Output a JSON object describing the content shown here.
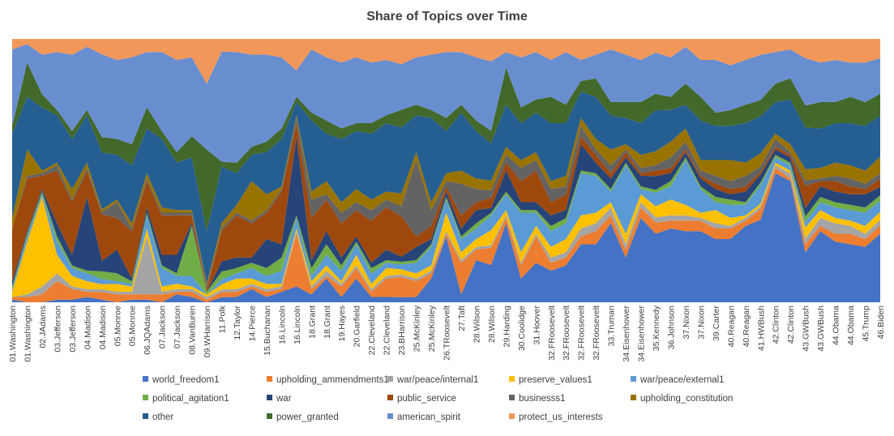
{
  "chart_data": {
    "type": "area",
    "stacked": "percent",
    "title": "Share of Topics over Time",
    "xlabel": "",
    "ylabel": "",
    "ylim": [
      0,
      1
    ],
    "grid": false,
    "legend_position": "bottom",
    "x": [
      "01.Washington",
      "01.Washington",
      "02.JAdams",
      "03.Jefferson",
      "03.Jefferson",
      "04.Madison",
      "04.Madison",
      "05.Monroe",
      "05.Monroe",
      "06.JQAdams",
      "07.Jackson",
      "07.Jackson",
      "08.VanBuren",
      "09.WHarrison",
      "11.Polk",
      "12.Taylor",
      "14.Pierce",
      "15.Buchanan",
      "16.Lincoln",
      "16.Lincoln",
      "18.Grant",
      "18.Grant",
      "19.Hayes",
      "20.Garfield",
      "22.Cleveland",
      "22.Cleveland",
      "23.BHarrison",
      "25.McKinley",
      "25.McKinley",
      "26.TRoosevelt",
      "27.Taft",
      "28.Wilson",
      "28.Wilson",
      "29.Harding",
      "30.Coolidge",
      "31.Hoover",
      "32.FRoosevelt",
      "32.FRoosevelt",
      "32.FRoosevelt",
      "32.FRoosevelt",
      "33.Truman",
      "34.Eisenhower",
      "34.Eisenhower",
      "35.Kennedy",
      "36.Johnson",
      "37.Nixon",
      "37.Nixon",
      "39.Carter",
      "40.Reagan",
      "40.Reagan",
      "41.HWBush",
      "42.Clinton",
      "42.Clinton",
      "43.GWBush",
      "43.GWBush",
      "44.Obama",
      "44.Obama",
      "45.Trump",
      "46.Biden"
    ],
    "series": [
      {
        "name": "world_freedom1",
        "color": "#4472C4",
        "values": [
          0.01,
          0.0,
          0.0,
          0.01,
          0.01,
          0.02,
          0.01,
          0.0,
          0.01,
          0.01,
          0.0,
          0.03,
          0.02,
          0.0,
          0.02,
          0.02,
          0.05,
          0.02,
          0.04,
          0.06,
          0.03,
          0.09,
          0.02,
          0.09,
          0.02,
          0.02,
          0.02,
          0.02,
          0.09,
          0.25,
          0.03,
          0.16,
          0.15,
          0.3,
          0.09,
          0.15,
          0.12,
          0.14,
          0.22,
          0.22,
          0.3,
          0.17,
          0.32,
          0.25,
          0.28,
          0.27,
          0.27,
          0.24,
          0.24,
          0.29,
          0.31,
          0.49,
          0.46,
          0.18,
          0.27,
          0.23,
          0.22,
          0.21,
          0.25
        ]
      },
      {
        "name": "upholding_ammendments1",
        "color": "#ED7D31",
        "values": [
          0.01,
          0.02,
          0.03,
          0.07,
          0.04,
          0.02,
          0.03,
          0.03,
          0.02,
          0.02,
          0.03,
          0.01,
          0.02,
          0.01,
          0.02,
          0.02,
          0.01,
          0.02,
          0.01,
          0.2,
          0.02,
          0.01,
          0.04,
          0.04,
          0.02,
          0.07,
          0.08,
          0.06,
          0.02,
          0.01,
          0.12,
          0.04,
          0.07,
          0.02,
          0.05,
          0.1,
          0.03,
          0.03,
          0.03,
          0.05,
          0.03,
          0.03,
          0.04,
          0.04,
          0.03,
          0.04,
          0.04,
          0.04,
          0.04,
          0.02,
          0.04,
          0.02,
          0.01,
          0.03,
          0.02,
          0.03,
          0.04,
          0.03,
          0.03
        ]
      },
      {
        "name": "war/peace/internal1",
        "color": "#A5A5A5",
        "values": [
          0.0,
          0.01,
          0.03,
          0.03,
          0.01,
          0.01,
          0.01,
          0.01,
          0.01,
          0.22,
          0.01,
          0.01,
          0.01,
          0.01,
          0.01,
          0.01,
          0.01,
          0.01,
          0.01,
          0.01,
          0.01,
          0.02,
          0.01,
          0.01,
          0.01,
          0.01,
          0.01,
          0.01,
          0.01,
          0.01,
          0.01,
          0.01,
          0.01,
          0.01,
          0.01,
          0.01,
          0.02,
          0.02,
          0.03,
          0.03,
          0.03,
          0.02,
          0.02,
          0.02,
          0.02,
          0.02,
          0.01,
          0.02,
          0.01,
          0.01,
          0.01,
          0.01,
          0.02,
          0.02,
          0.03,
          0.04,
          0.03,
          0.02,
          0.02
        ]
      },
      {
        "name": "preserve_values1",
        "color": "#FFC000",
        "values": [
          0.02,
          0.2,
          0.34,
          0.07,
          0.04,
          0.03,
          0.02,
          0.03,
          0.02,
          0.03,
          0.02,
          0.02,
          0.01,
          0.01,
          0.02,
          0.04,
          0.02,
          0.02,
          0.01,
          0.01,
          0.02,
          0.02,
          0.01,
          0.04,
          0.02,
          0.03,
          0.02,
          0.02,
          0.02,
          0.07,
          0.03,
          0.03,
          0.06,
          0.02,
          0.04,
          0.03,
          0.04,
          0.05,
          0.05,
          0.04,
          0.02,
          0.04,
          0.03,
          0.04,
          0.06,
          0.04,
          0.02,
          0.05,
          0.03,
          0.01,
          0.01,
          0.01,
          0.01,
          0.04,
          0.03,
          0.02,
          0.02,
          0.03,
          0.03
        ]
      },
      {
        "name": "war/peace/external1",
        "color": "#5B9BD5",
        "values": [
          0.01,
          0.02,
          0.01,
          0.05,
          0.03,
          0.03,
          0.02,
          0.01,
          0.01,
          0.05,
          0.07,
          0.03,
          0.04,
          0.0,
          0.02,
          0.02,
          0.04,
          0.03,
          0.05,
          0.04,
          0.02,
          0.04,
          0.04,
          0.04,
          0.04,
          0.02,
          0.02,
          0.04,
          0.07,
          0.05,
          0.05,
          0.04,
          0.06,
          0.06,
          0.15,
          0.05,
          0.06,
          0.06,
          0.16,
          0.14,
          0.04,
          0.26,
          0.02,
          0.05,
          0.05,
          0.17,
          0.09,
          0.03,
          0.05,
          0.04,
          0.07,
          0.02,
          0.02,
          0.02,
          0.03,
          0.04,
          0.04,
          0.05,
          0.04
        ]
      },
      {
        "name": "political_agitation1",
        "color": "#70AD47",
        "values": [
          0.01,
          0.01,
          0.01,
          0.02,
          0.01,
          0.01,
          0.03,
          0.03,
          0.01,
          0.01,
          0.01,
          0.01,
          0.19,
          0.01,
          0.03,
          0.02,
          0.02,
          0.03,
          0.05,
          0.01,
          0.03,
          0.04,
          0.02,
          0.01,
          0.02,
          0.01,
          0.01,
          0.01,
          0.01,
          0.01,
          0.01,
          0.02,
          0.01,
          0.01,
          0.01,
          0.01,
          0.02,
          0.02,
          0.01,
          0.01,
          0.01,
          0.01,
          0.01,
          0.01,
          0.02,
          0.01,
          0.01,
          0.02,
          0.02,
          0.01,
          0.01,
          0.01,
          0.01,
          0.02,
          0.02,
          0.02,
          0.02,
          0.02,
          0.02
        ]
      },
      {
        "name": "war",
        "color": "#264478",
        "values": [
          0.02,
          0.01,
          0.01,
          0.05,
          0.04,
          0.28,
          0.04,
          0.09,
          0.01,
          0.02,
          0.04,
          0.07,
          0.01,
          0.0,
          0.04,
          0.04,
          0.02,
          0.11,
          0.05,
          0.3,
          0.03,
          0.05,
          0.03,
          0.02,
          0.02,
          0.04,
          0.02,
          0.05,
          0.02,
          0.02,
          0.03,
          0.05,
          0.02,
          0.08,
          0.03,
          0.03,
          0.04,
          0.03,
          0.1,
          0.04,
          0.04,
          0.02,
          0.04,
          0.05,
          0.03,
          0.02,
          0.03,
          0.03,
          0.02,
          0.04,
          0.03,
          0.02,
          0.02,
          0.03,
          0.04,
          0.04,
          0.04,
          0.05,
          0.03
        ]
      },
      {
        "name": "public_service",
        "color": "#9E480E",
        "values": [
          0.2,
          0.2,
          0.05,
          0.2,
          0.2,
          0.1,
          0.18,
          0.12,
          0.18,
          0.1,
          0.15,
          0.15,
          0.03,
          0.01,
          0.12,
          0.16,
          0.13,
          0.1,
          0.2,
          0.05,
          0.16,
          0.12,
          0.13,
          0.1,
          0.16,
          0.16,
          0.16,
          0.04,
          0.05,
          0.02,
          0.05,
          0.03,
          0.04,
          0.03,
          0.08,
          0.12,
          0.05,
          0.06,
          0.03,
          0.03,
          0.02,
          0.02,
          0.01,
          0.02,
          0.02,
          0.01,
          0.01,
          0.02,
          0.02,
          0.02,
          0.01,
          0.01,
          0.01,
          0.08,
          0.02,
          0.04,
          0.03,
          0.02,
          0.03
        ]
      },
      {
        "name": "businesss1",
        "color": "#636363",
        "values": [
          0.0,
          0.01,
          0.01,
          0.02,
          0.01,
          0.01,
          0.01,
          0.06,
          0.01,
          0.01,
          0.01,
          0.01,
          0.01,
          0.01,
          0.01,
          0.01,
          0.01,
          0.01,
          0.01,
          0.02,
          0.07,
          0.02,
          0.04,
          0.03,
          0.04,
          0.03,
          0.04,
          0.29,
          0.06,
          0.02,
          0.12,
          0.05,
          0.03,
          0.03,
          0.05,
          0.04,
          0.05,
          0.03,
          0.04,
          0.02,
          0.03,
          0.01,
          0.02,
          0.02,
          0.04,
          0.03,
          0.02,
          0.03,
          0.03,
          0.04,
          0.02,
          0.03,
          0.01,
          0.02,
          0.01,
          0.02,
          0.03,
          0.02,
          0.02
        ]
      },
      {
        "name": "upholding_constitution",
        "color": "#997300",
        "values": [
          0.04,
          0.1,
          0.01,
          0.01,
          0.04,
          0.02,
          0.01,
          0.01,
          0.02,
          0.02,
          0.02,
          0.01,
          0.01,
          0.01,
          0.02,
          0.03,
          0.15,
          0.06,
          0.01,
          0.01,
          0.03,
          0.05,
          0.04,
          0.05,
          0.04,
          0.03,
          0.05,
          0.03,
          0.03,
          0.03,
          0.05,
          0.04,
          0.04,
          0.03,
          0.03,
          0.03,
          0.03,
          0.04,
          0.03,
          0.04,
          0.06,
          0.02,
          0.05,
          0.05,
          0.06,
          0.05,
          0.04,
          0.06,
          0.08,
          0.05,
          0.05,
          0.02,
          0.03,
          0.04,
          0.04,
          0.05,
          0.05,
          0.05,
          0.06
        ]
      },
      {
        "name": "other",
        "color": "#255E91",
        "values": [
          0.32,
          0.2,
          0.24,
          0.18,
          0.19,
          0.18,
          0.22,
          0.17,
          0.22,
          0.17,
          0.26,
          0.18,
          0.2,
          0.2,
          0.22,
          0.12,
          0.1,
          0.16,
          0.18,
          0.05,
          0.27,
          0.18,
          0.24,
          0.22,
          0.25,
          0.26,
          0.26,
          0.14,
          0.32,
          0.16,
          0.22,
          0.18,
          0.15,
          0.16,
          0.14,
          0.15,
          0.22,
          0.2,
          0.1,
          0.16,
          0.13,
          0.1,
          0.12,
          0.15,
          0.12,
          0.09,
          0.15,
          0.13,
          0.13,
          0.15,
          0.14,
          0.12,
          0.17,
          0.15,
          0.15,
          0.15,
          0.16,
          0.17,
          0.15
        ]
      },
      {
        "name": "power_granted",
        "color": "#43682B",
        "values": [
          0.03,
          0.13,
          0.05,
          0.02,
          0.03,
          0.02,
          0.06,
          0.06,
          0.08,
          0.08,
          0.03,
          0.04,
          0.08,
          0.31,
          0.02,
          0.04,
          0.03,
          0.04,
          0.04,
          0.02,
          0.03,
          0.05,
          0.04,
          0.03,
          0.04,
          0.03,
          0.07,
          0.04,
          0.03,
          0.05,
          0.03,
          0.04,
          0.05,
          0.14,
          0.06,
          0.05,
          0.1,
          0.07,
          0.04,
          0.07,
          0.05,
          0.06,
          0.08,
          0.06,
          0.05,
          0.08,
          0.09,
          0.05,
          0.06,
          0.07,
          0.06,
          0.07,
          0.08,
          0.08,
          0.1,
          0.08,
          0.1,
          0.09,
          0.08
        ]
      },
      {
        "name": "american_spirit",
        "color": "#698ED0",
        "values": [
          0.29,
          0.07,
          0.15,
          0.22,
          0.29,
          0.24,
          0.32,
          0.3,
          0.33,
          0.21,
          0.3,
          0.35,
          0.3,
          0.25,
          0.43,
          0.42,
          0.35,
          0.33,
          0.27,
          0.1,
          0.24,
          0.24,
          0.25,
          0.25,
          0.23,
          0.21,
          0.18,
          0.18,
          0.21,
          0.25,
          0.2,
          0.24,
          0.28,
          0.06,
          0.19,
          0.18,
          0.14,
          0.2,
          0.08,
          0.09,
          0.2,
          0.18,
          0.16,
          0.15,
          0.15,
          0.14,
          0.14,
          0.2,
          0.17,
          0.17,
          0.17,
          0.12,
          0.11,
          0.17,
          0.15,
          0.16,
          0.13,
          0.15,
          0.13
        ]
      },
      {
        "name": "protect_us_interests",
        "color": "#F1975A",
        "values": [
          0.04,
          0.02,
          0.06,
          0.05,
          0.06,
          0.03,
          0.06,
          0.08,
          0.07,
          0.05,
          0.05,
          0.08,
          0.07,
          0.17,
          0.05,
          0.05,
          0.06,
          0.06,
          0.07,
          0.12,
          0.04,
          0.07,
          0.09,
          0.07,
          0.09,
          0.08,
          0.1,
          0.07,
          0.06,
          0.05,
          0.05,
          0.07,
          0.09,
          0.05,
          0.07,
          0.05,
          0.08,
          0.05,
          0.08,
          0.06,
          0.04,
          0.06,
          0.08,
          0.05,
          0.07,
          0.03,
          0.08,
          0.08,
          0.1,
          0.08,
          0.06,
          0.05,
          0.04,
          0.07,
          0.09,
          0.08,
          0.09,
          0.09,
          0.07
        ]
      }
    ]
  }
}
